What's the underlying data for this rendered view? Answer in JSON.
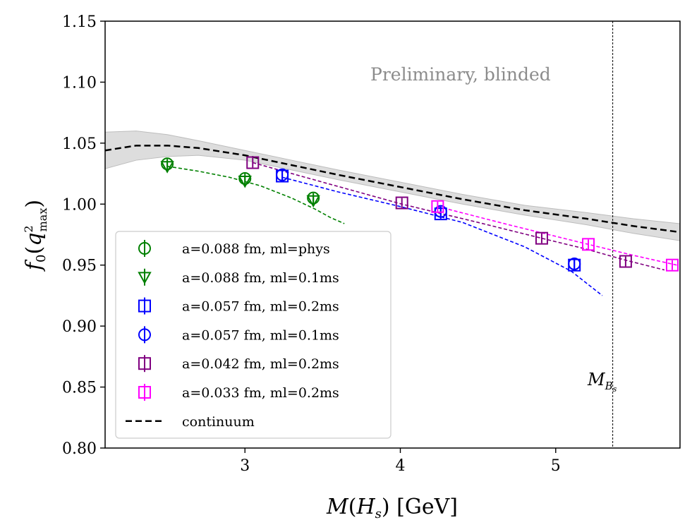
{
  "chart_data": {
    "type": "scatter",
    "xlabel": "M(H_s) [GeV]",
    "ylabel": "f_0(q^2_max)",
    "xlim": [
      2.1,
      5.8
    ],
    "ylim": [
      0.8,
      1.15
    ],
    "x_ticks": [
      3,
      4,
      5
    ],
    "y_ticks": [
      0.8,
      0.85,
      0.9,
      0.95,
      1.0,
      1.05,
      1.1,
      1.15
    ],
    "x_tick_labels": [
      "3",
      "4",
      "5"
    ],
    "y_tick_labels": [
      "0.80",
      "0.85",
      "0.90",
      "0.95",
      "1.00",
      "1.05",
      "1.10",
      "1.15"
    ],
    "watermark": "Preliminary, blinded",
    "vline": {
      "x": 5.367,
      "label_main": "M",
      "label_sub": "B",
      "label_subsub": "s"
    },
    "legend_position": "lower-left",
    "series": [
      {
        "name": "a=0.088 fm, ml=phys",
        "color": "#008000",
        "marker": "circle",
        "x": [
          2.5,
          3.0,
          3.44
        ],
        "y": [
          1.033,
          1.021,
          1.005
        ],
        "yerr": [
          0.004,
          0.004,
          0.004
        ],
        "fit": {
          "x": [
            2.5,
            2.7,
            2.9,
            3.1,
            3.3,
            3.45,
            3.55,
            3.64
          ],
          "y": [
            1.031,
            1.027,
            1.022,
            1.015,
            1.005,
            0.996,
            0.989,
            0.984
          ]
        }
      },
      {
        "name": "a=0.088 fm, ml=0.1ms",
        "color": "#008000",
        "marker": "triangle_down",
        "x": [
          2.5,
          3.0,
          3.44
        ],
        "y": [
          1.031,
          1.019,
          1.003
        ],
        "yerr": [
          0.004,
          0.004,
          0.004
        ]
      },
      {
        "name": "a=0.057 fm, ml=0.2ms",
        "color": "#0000ff",
        "marker": "square",
        "x": [
          3.24,
          4.26,
          5.12
        ],
        "y": [
          1.023,
          0.992,
          0.95
        ],
        "yerr": [
          0.004,
          0.004,
          0.004
        ]
      },
      {
        "name": "a=0.057 fm, ml=0.1ms",
        "color": "#0000ff",
        "marker": "circle",
        "x": [
          3.24,
          4.26,
          5.12
        ],
        "y": [
          1.024,
          0.994,
          0.951
        ],
        "yerr": [
          0.004,
          0.004,
          0.004
        ],
        "fit": {
          "x": [
            3.24,
            3.6,
            4.0,
            4.4,
            4.8,
            5.1,
            5.3
          ],
          "y": [
            1.022,
            1.01,
            0.998,
            0.985,
            0.965,
            0.945,
            0.925
          ]
        }
      },
      {
        "name": "a=0.042 fm, ml=0.2ms",
        "color": "#800080",
        "marker": "square",
        "x": [
          3.05,
          4.01,
          4.91,
          5.45
        ],
        "y": [
          1.034,
          1.001,
          0.972,
          0.953
        ],
        "yerr": [
          0.004,
          0.004,
          0.004,
          0.004
        ],
        "fit": {
          "x": [
            3.05,
            3.5,
            4.01,
            4.5,
            4.91,
            5.2,
            5.45,
            5.7
          ],
          "y": [
            1.034,
            1.018,
            1.0,
            0.985,
            0.972,
            0.963,
            0.954,
            0.946
          ]
        }
      },
      {
        "name": "a=0.033 fm, ml=0.2ms",
        "color": "#ff00ff",
        "marker": "square",
        "x": [
          4.24,
          5.21,
          5.75
        ],
        "y": [
          0.998,
          0.967,
          0.95
        ],
        "yerr": [
          0.004,
          0.004,
          0.004
        ],
        "fit": {
          "x": [
            4.24,
            4.7,
            5.21,
            5.5,
            5.78
          ],
          "y": [
            0.998,
            0.983,
            0.967,
            0.958,
            0.95
          ]
        }
      }
    ],
    "continuum": {
      "name": "continuum",
      "color": "#000000",
      "x": [
        2.1,
        2.3,
        2.5,
        2.7,
        3.0,
        3.3,
        3.6,
        4.0,
        4.4,
        4.8,
        5.2,
        5.5,
        5.8
      ],
      "y": [
        1.044,
        1.048,
        1.048,
        1.046,
        1.04,
        1.032,
        1.024,
        1.014,
        1.004,
        0.995,
        0.988,
        0.982,
        0.977
      ],
      "band_half_width": [
        0.015,
        0.012,
        0.009,
        0.006,
        0.004,
        0.004,
        0.004,
        0.004,
        0.004,
        0.004,
        0.005,
        0.006,
        0.007
      ]
    }
  },
  "colors": {
    "band": "#d9d9d9",
    "axis": "#000000",
    "legend_border": "#cccccc",
    "watermark": "#8c8c8c"
  }
}
